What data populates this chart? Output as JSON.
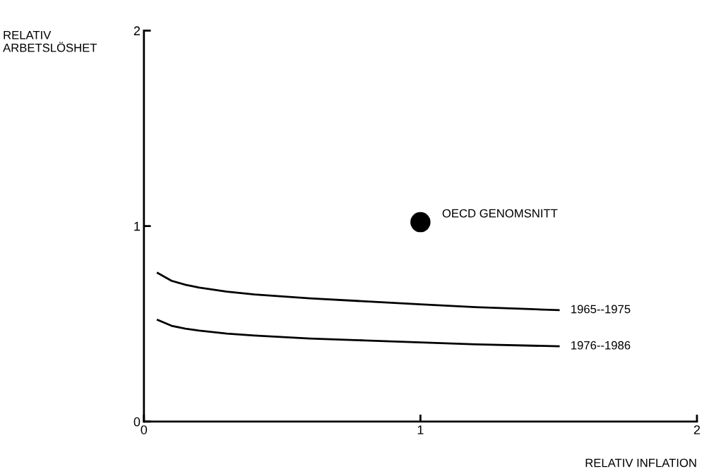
{
  "chart_data": {
    "type": "line",
    "xlabel": "RELATIV INFLATION",
    "ylabel": "RELATIV\nARBETSLÖSHET",
    "xlim": [
      0,
      2
    ],
    "ylim": [
      0,
      2
    ],
    "xticks": [
      0,
      1,
      2
    ],
    "yticks": [
      0,
      1,
      2
    ],
    "grid": false,
    "legend": false,
    "marker": "none",
    "line_style": "solid",
    "series": [
      {
        "name": "1965--1975",
        "color": "#000000",
        "x": [
          0.05,
          0.1,
          0.15,
          0.2,
          0.3,
          0.4,
          0.5,
          0.6,
          0.8,
          1.0,
          1.2,
          1.4,
          1.5
        ],
        "values": [
          0.76,
          0.72,
          0.7,
          0.685,
          0.665,
          0.65,
          0.64,
          0.63,
          0.615,
          0.6,
          0.585,
          0.575,
          0.57
        ]
      },
      {
        "name": "1976--1986",
        "color": "#000000",
        "x": [
          0.05,
          0.1,
          0.15,
          0.2,
          0.3,
          0.4,
          0.6,
          0.8,
          1.0,
          1.2,
          1.5
        ],
        "values": [
          0.52,
          0.49,
          0.475,
          0.465,
          0.45,
          0.44,
          0.425,
          0.415,
          0.405,
          0.395,
          0.385
        ]
      },
      {
        "name": "OECD GENOMSNITT",
        "type": "scatter",
        "marker": "circle",
        "color": "#000000",
        "x": [
          1.0
        ],
        "values": [
          1.02
        ]
      }
    ]
  }
}
